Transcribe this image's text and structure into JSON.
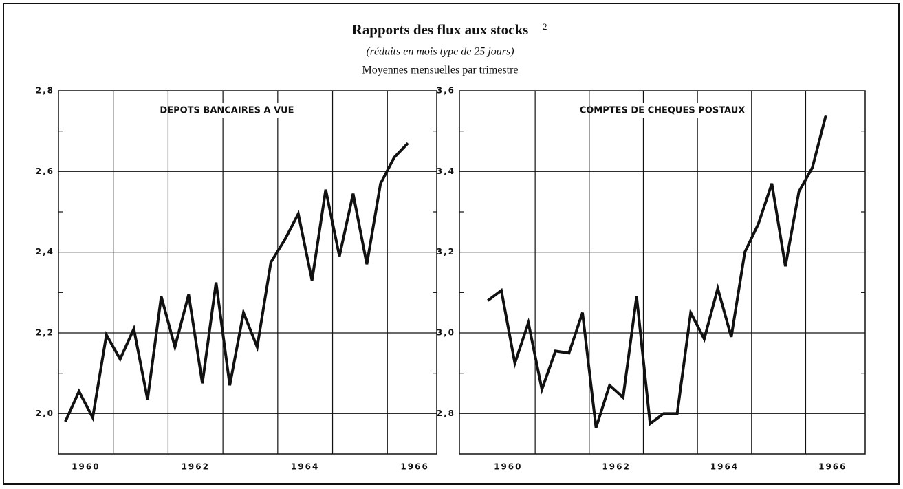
{
  "header": {
    "title": "Rapports des flux aux stocks",
    "title_note": "2",
    "subtitle": "(réduits en mois type de 25 jours)",
    "caption": "Moyennes mensuelles par trimestre"
  },
  "chart_data": [
    {
      "type": "line",
      "title": "DEPOTS BANCAIRES A VUE",
      "x": [
        1960.125,
        1960.375,
        1960.625,
        1960.875,
        1961.125,
        1961.375,
        1961.625,
        1961.875,
        1962.125,
        1962.375,
        1962.625,
        1962.875,
        1963.125,
        1963.375,
        1963.625,
        1963.875,
        1964.125,
        1964.375,
        1964.625,
        1964.875,
        1965.125,
        1965.375,
        1965.625,
        1965.875,
        1966.125,
        1966.375
      ],
      "series": [
        {
          "color": "#111111",
          "values": [
            1.98,
            2.055,
            1.99,
            2.195,
            2.135,
            2.21,
            2.035,
            2.29,
            2.165,
            2.295,
            2.075,
            2.325,
            2.07,
            2.25,
            2.165,
            2.375,
            2.43,
            2.495,
            2.33,
            2.555,
            2.39,
            2.545,
            2.37,
            2.57,
            2.635,
            2.67
          ]
        }
      ],
      "xlim": [
        1960,
        1966.9
      ],
      "xticks": [
        {
          "value": 1960.5,
          "label": "1960"
        },
        {
          "value": 1962.5,
          "label": "1962"
        },
        {
          "value": 1964.5,
          "label": "1964"
        },
        {
          "value": 1966.5,
          "label": "1966"
        }
      ],
      "xgrid": [
        1961,
        1962,
        1963,
        1964,
        1965,
        1966
      ],
      "ylim": [
        1.9,
        2.8
      ],
      "yticks": [
        {
          "value": 2.0,
          "label": "2,0"
        },
        {
          "value": 2.2,
          "label": "2,2"
        },
        {
          "value": 2.4,
          "label": "2,4"
        },
        {
          "value": 2.6,
          "label": "2,6"
        },
        {
          "value": 2.8,
          "label": "2,8"
        }
      ],
      "minor_yticks": [
        2.1,
        2.3,
        2.5,
        2.7
      ],
      "grid": true
    },
    {
      "type": "line",
      "title": "COMPTES DE CHEQUES POSTAUX",
      "x": [
        1960.125,
        1960.375,
        1960.625,
        1960.875,
        1961.125,
        1961.375,
        1961.625,
        1961.875,
        1962.125,
        1962.375,
        1962.625,
        1962.875,
        1963.125,
        1963.375,
        1963.625,
        1963.875,
        1964.125,
        1964.375,
        1964.625,
        1964.875,
        1965.125,
        1965.375,
        1965.625,
        1965.875,
        1966.125,
        1966.375
      ],
      "series": [
        {
          "color": "#111111",
          "values": [
            3.08,
            3.105,
            2.925,
            3.025,
            2.86,
            2.955,
            2.95,
            3.05,
            2.765,
            2.87,
            2.84,
            3.09,
            2.775,
            2.8,
            2.8,
            3.05,
            2.985,
            3.11,
            2.99,
            3.2,
            3.27,
            3.37,
            3.165,
            3.35,
            3.41,
            3.54
          ]
        }
      ],
      "xlim": [
        1959.6,
        1967.1
      ],
      "xticks": [
        {
          "value": 1960.5,
          "label": "1960"
        },
        {
          "value": 1962.5,
          "label": "1962"
        },
        {
          "value": 1964.5,
          "label": "1964"
        },
        {
          "value": 1966.5,
          "label": "1966"
        }
      ],
      "xgrid": [
        1961,
        1962,
        1963,
        1964,
        1965,
        1966
      ],
      "ylim": [
        2.7,
        3.6
      ],
      "yticks": [
        {
          "value": 2.8,
          "label": "2,8"
        },
        {
          "value": 3.0,
          "label": "3,0"
        },
        {
          "value": 3.2,
          "label": "3,2"
        },
        {
          "value": 3.4,
          "label": "3,4"
        },
        {
          "value": 3.6,
          "label": "3,6"
        }
      ],
      "minor_yticks": [
        2.9,
        3.1,
        3.3,
        3.5
      ],
      "grid": true
    }
  ]
}
